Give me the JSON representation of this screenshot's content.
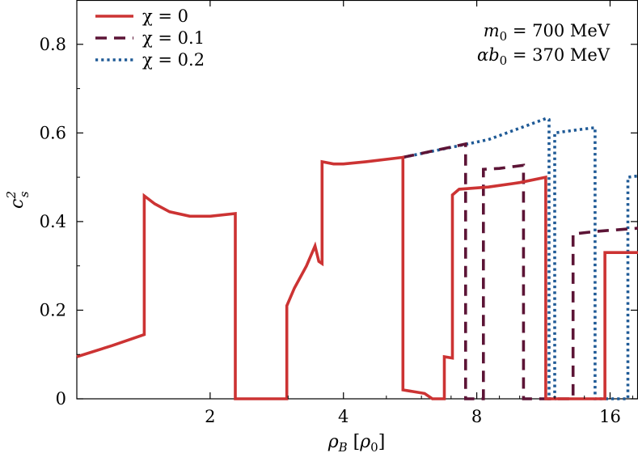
{
  "chart_data": {
    "type": "line",
    "title": "",
    "xlabel": "ρ_B [ρ_0]",
    "ylabel": "c_s^2",
    "xscale": "log",
    "xlim": [
      1.0,
      18.5
    ],
    "ylim": [
      0,
      0.9
    ],
    "xticks": [
      {
        "value": 2,
        "label": "2"
      },
      {
        "value": 4,
        "label": "4"
      },
      {
        "value": 8,
        "label": "8"
      },
      {
        "value": 16,
        "label": "16"
      }
    ],
    "yticks": [
      {
        "value": 0,
        "label": "0"
      },
      {
        "value": 0.2,
        "label": "0.2"
      },
      {
        "value": 0.4,
        "label": "0.4"
      },
      {
        "value": 0.6,
        "label": "0.6"
      },
      {
        "value": 0.8,
        "label": "0.8"
      }
    ],
    "grid": false,
    "legend_position": "top-left",
    "annotations": [
      "m_0 = 700 MeV",
      "αb_0 = 370 MeV"
    ],
    "series": [
      {
        "name": "χ = 0",
        "color": "#cc3333",
        "style": "solid",
        "points": [
          [
            1.0,
            0.095
          ],
          [
            1.2,
            0.12
          ],
          [
            1.42,
            0.145
          ],
          [
            1.42,
            0.458
          ],
          [
            1.5,
            0.44
          ],
          [
            1.62,
            0.422
          ],
          [
            1.8,
            0.412
          ],
          [
            2.0,
            0.412
          ],
          [
            2.28,
            0.418
          ],
          [
            2.28,
            0.0
          ],
          [
            2.98,
            0.0
          ],
          [
            2.98,
            0.21
          ],
          [
            3.1,
            0.25
          ],
          [
            3.3,
            0.3
          ],
          [
            3.45,
            0.345
          ],
          [
            3.52,
            0.31
          ],
          [
            3.58,
            0.305
          ],
          [
            3.58,
            0.535
          ],
          [
            3.8,
            0.53
          ],
          [
            4.0,
            0.53
          ],
          [
            4.5,
            0.535
          ],
          [
            5.45,
            0.545
          ],
          [
            5.45,
            0.02
          ],
          [
            6.1,
            0.012
          ],
          [
            6.35,
            0.0
          ],
          [
            6.76,
            0.0
          ],
          [
            6.76,
            0.095
          ],
          [
            7.05,
            0.092
          ],
          [
            7.05,
            0.46
          ],
          [
            7.3,
            0.473
          ],
          [
            8.5,
            0.478
          ],
          [
            10.0,
            0.488
          ],
          [
            11.45,
            0.5
          ],
          [
            11.45,
            0.0
          ],
          [
            15.58,
            0.0
          ],
          [
            15.58,
            0.33
          ],
          [
            18.5,
            0.33
          ]
        ]
      },
      {
        "name": "χ = 0.1",
        "color": "#5c1436",
        "style": "dashed",
        "points": [
          [
            5.45,
            0.545
          ],
          [
            7.55,
            0.575
          ],
          [
            7.55,
            0.0
          ],
          [
            8.28,
            0.0
          ],
          [
            8.28,
            0.518
          ],
          [
            9.0,
            0.52
          ],
          [
            10.2,
            0.527
          ],
          [
            10.2,
            0.0
          ],
          [
            13.2,
            0.0
          ],
          [
            13.2,
            0.372
          ],
          [
            15.0,
            0.378
          ],
          [
            18.5,
            0.385
          ]
        ]
      },
      {
        "name": "χ = 0.2",
        "color": "#1f5a96",
        "style": "dotted",
        "points": [
          [
            5.45,
            0.545
          ],
          [
            8.5,
            0.585
          ],
          [
            11.5,
            0.633
          ],
          [
            11.65,
            0.63
          ],
          [
            11.65,
            0.0
          ],
          [
            12.0,
            0.0
          ],
          [
            12.0,
            0.6
          ],
          [
            13.5,
            0.607
          ],
          [
            14.8,
            0.612
          ],
          [
            14.8,
            0.0
          ],
          [
            17.55,
            0.0
          ],
          [
            17.55,
            0.5
          ],
          [
            18.5,
            0.503
          ]
        ]
      }
    ]
  }
}
